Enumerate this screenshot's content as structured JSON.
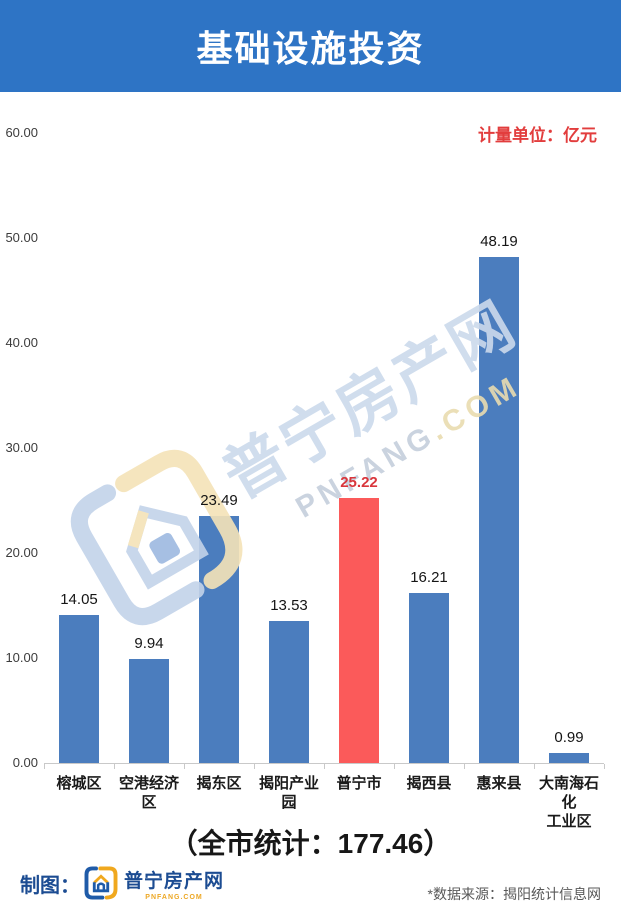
{
  "header": {
    "title": "基础设施投资"
  },
  "unit_label": "计量单位：亿元",
  "chart_data": {
    "type": "bar",
    "title": "基础设施投资",
    "unit": "亿元",
    "categories": [
      "榕城区",
      "空港经济区",
      "揭东区",
      "揭阳产业园",
      "普宁市",
      "揭西县",
      "惠来县",
      "大南海石化\n工业区"
    ],
    "values": [
      14.05,
      9.94,
      23.49,
      13.53,
      25.22,
      16.21,
      48.19,
      0.99
    ],
    "value_labels": [
      "14.05",
      "9.94",
      "23.49",
      "13.53",
      "25.22",
      "16.21",
      "48.19",
      "0.99"
    ],
    "highlight_index": 4,
    "colors": {
      "bar": "#4b7dbe",
      "highlight_bar": "#fb5a5a",
      "value_label": "#151515",
      "highlight_value_label": "#d9363c"
    },
    "y_ticks": [
      "0.00",
      "10.00",
      "20.00",
      "30.00",
      "40.00",
      "50.00",
      "60.00"
    ],
    "ylim": [
      0,
      60
    ],
    "grid": false,
    "legend": null,
    "annotation_total": "177.46"
  },
  "summary": "（全市统计：177.46）",
  "watermark": {
    "brand": "普宁房产网",
    "domain_main": "PNFANG",
    "domain_tld": ".COM"
  },
  "footer": {
    "credit_label": "制图：",
    "brand_name": "普宁房产网",
    "brand_domain": "PNFANG.COM",
    "source": "*数据来源：揭阳统计信息网"
  }
}
